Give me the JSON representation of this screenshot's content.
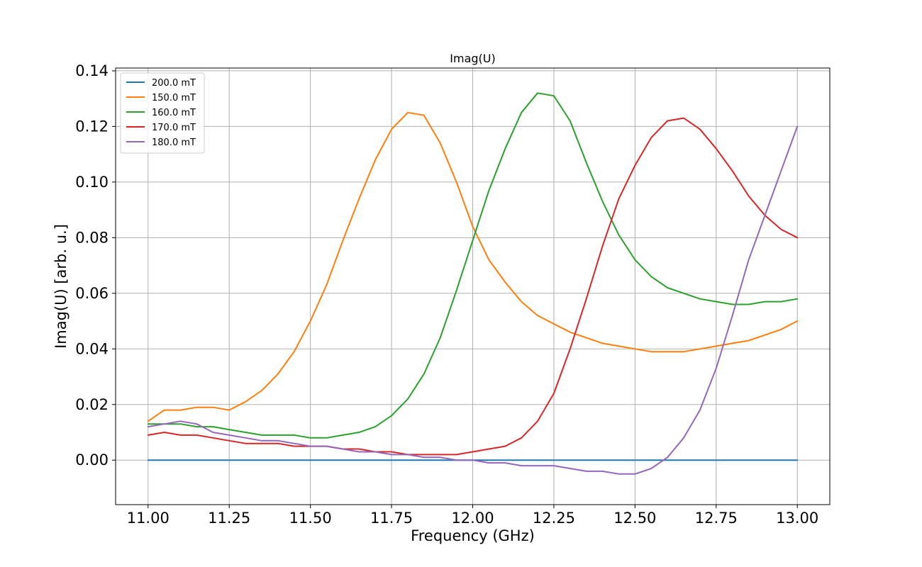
{
  "chart_data": {
    "type": "line",
    "title": "Imag(U)",
    "xlabel": "Frequency (GHz)",
    "ylabel": "Imag(U) [arb. u.]",
    "xlim": [
      10.9,
      13.1
    ],
    "ylim": [
      -0.016,
      0.141
    ],
    "xticks": [
      11.0,
      11.25,
      11.5,
      11.75,
      12.0,
      12.25,
      12.5,
      12.75,
      13.0
    ],
    "xtick_labels": [
      "11.00",
      "11.25",
      "11.50",
      "11.75",
      "12.00",
      "12.25",
      "12.50",
      "12.75",
      "13.00"
    ],
    "yticks": [
      0.0,
      0.02,
      0.04,
      0.06,
      0.08,
      0.1,
      0.12,
      0.14
    ],
    "ytick_labels": [
      "0.00",
      "0.02",
      "0.04",
      "0.06",
      "0.08",
      "0.10",
      "0.12",
      "0.14"
    ],
    "grid": true,
    "legend_position": "upper-left",
    "series": [
      {
        "name": "200.0 mT",
        "color": "#1f77b4",
        "x": [
          11.0,
          13.0
        ],
        "y": [
          0.0,
          0.0
        ]
      },
      {
        "name": "150.0 mT",
        "color": "#ff7f0e",
        "x": [
          11.0,
          11.05,
          11.1,
          11.15,
          11.2,
          11.25,
          11.3,
          11.35,
          11.4,
          11.45,
          11.5,
          11.55,
          11.6,
          11.65,
          11.7,
          11.75,
          11.8,
          11.85,
          11.9,
          11.95,
          12.0,
          12.05,
          12.1,
          12.15,
          12.2,
          12.25,
          12.3,
          12.35,
          12.4,
          12.45,
          12.5,
          12.55,
          12.6,
          12.65,
          12.7,
          12.75,
          12.8,
          12.85,
          12.9,
          12.95,
          13.0
        ],
        "y": [
          0.014,
          0.018,
          0.018,
          0.019,
          0.019,
          0.018,
          0.021,
          0.025,
          0.031,
          0.039,
          0.05,
          0.063,
          0.079,
          0.094,
          0.108,
          0.119,
          0.125,
          0.124,
          0.114,
          0.1,
          0.084,
          0.072,
          0.064,
          0.057,
          0.052,
          0.049,
          0.046,
          0.044,
          0.042,
          0.041,
          0.04,
          0.039,
          0.039,
          0.039,
          0.04,
          0.041,
          0.042,
          0.043,
          0.045,
          0.047,
          0.05
        ]
      },
      {
        "name": "160.0 mT",
        "color": "#2ca02c",
        "x": [
          11.0,
          11.05,
          11.1,
          11.15,
          11.2,
          11.25,
          11.3,
          11.35,
          11.4,
          11.45,
          11.5,
          11.55,
          11.6,
          11.65,
          11.7,
          11.75,
          11.8,
          11.85,
          11.9,
          11.95,
          12.0,
          12.05,
          12.1,
          12.15,
          12.2,
          12.25,
          12.3,
          12.35,
          12.4,
          12.45,
          12.5,
          12.55,
          12.6,
          12.65,
          12.7,
          12.75,
          12.8,
          12.85,
          12.9,
          12.95,
          13.0
        ],
        "y": [
          0.013,
          0.013,
          0.013,
          0.012,
          0.012,
          0.011,
          0.01,
          0.009,
          0.009,
          0.009,
          0.008,
          0.008,
          0.009,
          0.01,
          0.012,
          0.016,
          0.022,
          0.031,
          0.044,
          0.061,
          0.079,
          0.097,
          0.112,
          0.125,
          0.132,
          0.131,
          0.122,
          0.107,
          0.093,
          0.081,
          0.072,
          0.066,
          0.062,
          0.06,
          0.058,
          0.057,
          0.056,
          0.056,
          0.057,
          0.057,
          0.058
        ]
      },
      {
        "name": "170.0 mT",
        "color": "#d62728",
        "x": [
          11.0,
          11.05,
          11.1,
          11.15,
          11.2,
          11.25,
          11.3,
          11.35,
          11.4,
          11.45,
          11.5,
          11.55,
          11.6,
          11.65,
          11.7,
          11.75,
          11.8,
          11.85,
          11.9,
          11.95,
          12.0,
          12.05,
          12.1,
          12.15,
          12.2,
          12.25,
          12.3,
          12.35,
          12.4,
          12.45,
          12.5,
          12.55,
          12.6,
          12.65,
          12.7,
          12.75,
          12.8,
          12.85,
          12.9,
          12.95,
          13.0
        ],
        "y": [
          0.009,
          0.01,
          0.009,
          0.009,
          0.008,
          0.007,
          0.006,
          0.006,
          0.006,
          0.005,
          0.005,
          0.005,
          0.004,
          0.004,
          0.003,
          0.003,
          0.002,
          0.002,
          0.002,
          0.002,
          0.003,
          0.004,
          0.005,
          0.008,
          0.014,
          0.024,
          0.04,
          0.058,
          0.077,
          0.094,
          0.106,
          0.116,
          0.122,
          0.123,
          0.119,
          0.112,
          0.104,
          0.095,
          0.088,
          0.083,
          0.08
        ]
      },
      {
        "name": "180.0 mT",
        "color": "#9467bd",
        "x": [
          11.0,
          11.05,
          11.1,
          11.15,
          11.2,
          11.25,
          11.3,
          11.35,
          11.4,
          11.45,
          11.5,
          11.55,
          11.6,
          11.65,
          11.7,
          11.75,
          11.8,
          11.85,
          11.9,
          11.95,
          12.0,
          12.05,
          12.1,
          12.15,
          12.2,
          12.25,
          12.3,
          12.35,
          12.4,
          12.45,
          12.5,
          12.55,
          12.6,
          12.65,
          12.7,
          12.75,
          12.8,
          12.85,
          12.9,
          12.95,
          13.0
        ],
        "y": [
          0.012,
          0.013,
          0.014,
          0.013,
          0.01,
          0.009,
          0.008,
          0.007,
          0.007,
          0.006,
          0.005,
          0.005,
          0.004,
          0.003,
          0.003,
          0.002,
          0.002,
          0.001,
          0.001,
          0.0,
          0.0,
          -0.001,
          -0.001,
          -0.002,
          -0.002,
          -0.002,
          -0.003,
          -0.004,
          -0.004,
          -0.005,
          -0.005,
          -0.003,
          0.001,
          0.008,
          0.018,
          0.033,
          0.052,
          0.072,
          0.088,
          0.104,
          0.12
        ]
      }
    ]
  }
}
